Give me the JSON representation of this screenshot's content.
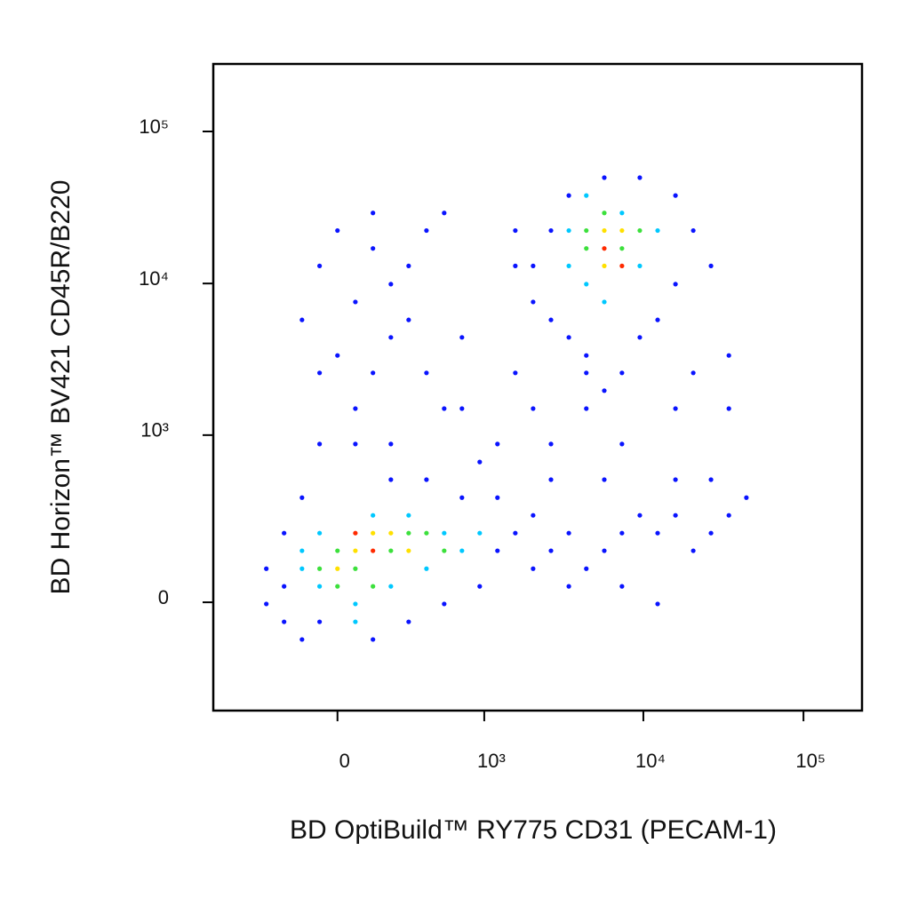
{
  "chart_data": {
    "type": "scatter",
    "xlabel": "BD OptiBuild™ RY775 CD31 (PECAM-1)",
    "ylabel": "BD Horizon™ BV421 CD45R/B220",
    "scale": "biexponential",
    "xlim": [
      -713,
      232000
    ],
    "ylim": [
      -397,
      278000
    ],
    "xticks": [
      0,
      {
        "value": 1000,
        "label": "10³"
      },
      {
        "value": 10000,
        "label": "10⁴"
      },
      {
        "value": 100000,
        "label": "10⁵"
      }
    ],
    "yticks": [
      0,
      {
        "value": 1000,
        "label": "10³"
      },
      {
        "value": 10000,
        "label": "10⁴"
      },
      {
        "value": 100000,
        "label": "10⁵"
      }
    ],
    "series": [
      {
        "color": "#0a14ff",
        "x": [
          -298,
          -208,
          -131,
          -64,
          131,
          298,
          544,
          935,
          1215,
          1577,
          2042,
          2644,
          3420,
          4400,
          5700,
          7350,
          9500,
          12280,
          15870,
          20500,
          26450,
          34200,
          44000,
          7350,
          12280,
          3420,
          2042,
          716,
          408,
          208,
          -131,
          -208,
          -298,
          -208,
          1215,
          15870,
          26450,
          5700,
          2644,
          -64,
          0,
          64,
          131,
          208,
          298,
          408,
          64,
          -64,
          208,
          544,
          716,
          -131,
          131,
          0,
          298,
          408,
          544,
          -64,
          935,
          131,
          208,
          64,
          716,
          1215,
          1577,
          2042,
          2644,
          4400,
          7350,
          15870,
          20500,
          34200,
          34200,
          2042,
          2644,
          3420,
          5700,
          9500,
          15870,
          20500,
          15870,
          12280,
          7350,
          5700,
          4400,
          3420,
          2042,
          1577,
          2644,
          9500,
          4400,
          26450,
          1577
        ],
        "y": [
          -4,
          -48,
          -95,
          -48,
          -95,
          -48,
          -4,
          39,
          138,
          200,
          85,
          138,
          200,
          85,
          138,
          200,
          277,
          200,
          277,
          138,
          200,
          277,
          374,
          39,
          -4,
          39,
          277,
          374,
          500,
          500,
          374,
          200,
          85,
          39,
          374,
          500,
          500,
          500,
          500,
          13050,
          22300,
          7560,
          17000,
          4420,
          13050,
          2580,
          1500,
          872,
          872,
          1500,
          4420,
          5760,
          2580,
          3360,
          5760,
          22300,
          29100,
          2580,
          660,
          29100,
          9900,
          872,
          1500,
          872,
          2580,
          1500,
          872,
          1500,
          872,
          1500,
          2580,
          3360,
          1500,
          13050,
          22300,
          37900,
          49700,
          49700,
          37900,
          22300,
          9900,
          5760,
          2580,
          1970,
          3360,
          4420,
          7560,
          13050,
          5760,
          4420,
          2580,
          13050,
          22300
        ]
      },
      {
        "color": "#00c8ff",
        "x": [
          -131,
          -64,
          64,
          208,
          408,
          544,
          716,
          298,
          -64,
          -131,
          131,
          935,
          64,
          3420,
          4400,
          9500,
          7350,
          3420,
          5700,
          12280,
          4400
        ],
        "y": [
          85,
          39,
          -4,
          39,
          85,
          200,
          138,
          277,
          200,
          138,
          277,
          200,
          -48,
          22300,
          9900,
          13050,
          29100,
          13050,
          7560,
          22300,
          37900
        ]
      },
      {
        "color": "#3ce03c",
        "x": [
          -64,
          0,
          64,
          208,
          298,
          408,
          0,
          131,
          544,
          4400,
          7350,
          5700,
          9500,
          4400
        ],
        "y": [
          85,
          138,
          85,
          138,
          200,
          200,
          39,
          39,
          138,
          22300,
          17000,
          29100,
          22300,
          17000
        ]
      },
      {
        "color": "#ffe000",
        "x": [
          64,
          131,
          208,
          0,
          298,
          5700,
          7350,
          5700
        ],
        "y": [
          138,
          200,
          200,
          85,
          138,
          22300,
          22300,
          13050
        ]
      },
      {
        "color": "#ff2a00",
        "x": [
          64,
          131,
          5700,
          7350
        ],
        "y": [
          200,
          138,
          17000,
          13050
        ]
      }
    ]
  }
}
